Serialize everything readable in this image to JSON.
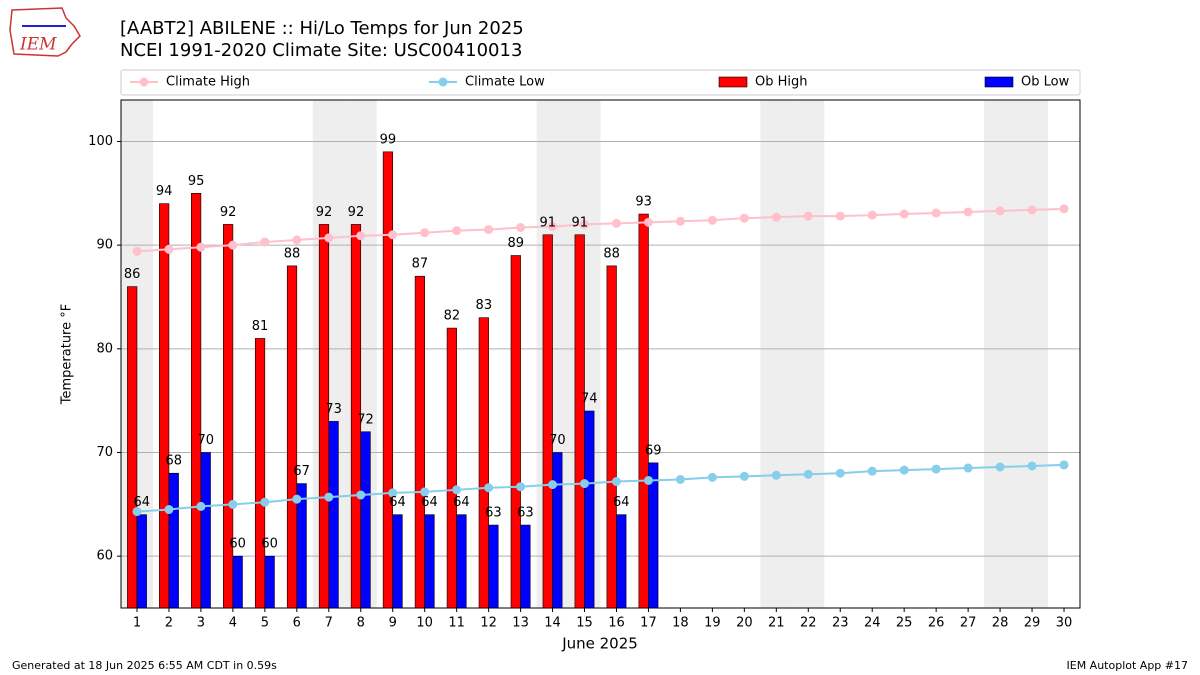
{
  "chart_data": {
    "type": "bar_line",
    "title": "[AABT2] ABILENE :: Hi/Lo Temps for Jun 2025",
    "subtitle": "NCEI 1991-2020 Climate Site: USC00410013",
    "logo_text": "IEM",
    "x_label": "June 2025",
    "y_label": "Temperature °F",
    "footer_left": "Generated at 18 Jun 2025 6:55 AM CDT in 0.59s",
    "footer_right": "IEM Autoplot App #17",
    "x": [
      1,
      2,
      3,
      4,
      5,
      6,
      7,
      8,
      9,
      10,
      11,
      12,
      13,
      14,
      15,
      16,
      17,
      18,
      19,
      20,
      21,
      22,
      23,
      24,
      25,
      26,
      27,
      28,
      29,
      30
    ],
    "xlim": [
      0.5,
      30.5
    ],
    "xticks": [
      1,
      2,
      3,
      4,
      5,
      6,
      7,
      8,
      9,
      10,
      11,
      12,
      13,
      14,
      15,
      16,
      17,
      18,
      19,
      20,
      21,
      22,
      23,
      24,
      25,
      26,
      27,
      28,
      29,
      30
    ],
    "ylim": [
      55,
      104
    ],
    "yticks": [
      60,
      70,
      80,
      90,
      100
    ],
    "grid": true,
    "shaded_days": [
      1,
      7,
      8,
      14,
      15,
      21,
      22,
      28,
      29
    ],
    "shade_color": "#eeeeee",
    "series": [
      {
        "name": "Climate High",
        "kind": "line",
        "color": "pink",
        "values": [
          89.4,
          89.6,
          89.8,
          90.0,
          90.3,
          90.5,
          90.7,
          90.9,
          91.0,
          91.2,
          91.4,
          91.5,
          91.7,
          91.8,
          92.0,
          92.1,
          92.2,
          92.3,
          92.4,
          92.6,
          92.7,
          92.8,
          92.8,
          92.9,
          93.0,
          93.1,
          93.2,
          93.3,
          93.4,
          93.5
        ]
      },
      {
        "name": "Climate Low",
        "kind": "line",
        "color": "skyblue",
        "values": [
          64.3,
          64.5,
          64.8,
          65.0,
          65.2,
          65.5,
          65.7,
          65.9,
          66.1,
          66.2,
          66.4,
          66.6,
          66.7,
          66.9,
          67.0,
          67.2,
          67.3,
          67.4,
          67.6,
          67.7,
          67.8,
          67.9,
          68.0,
          68.2,
          68.3,
          68.4,
          68.5,
          68.6,
          68.7,
          68.8
        ]
      },
      {
        "name": "Ob High",
        "kind": "bar",
        "color": "#ff0000",
        "values": [
          86,
          94,
          95,
          92,
          81,
          88,
          92,
          92,
          99,
          87,
          82,
          83,
          89,
          91,
          91,
          88,
          93,
          null,
          null,
          null,
          null,
          null,
          null,
          null,
          null,
          null,
          null,
          null,
          null,
          null
        ]
      },
      {
        "name": "Ob Low",
        "kind": "bar",
        "color": "#0000ff",
        "values": [
          64,
          68,
          70,
          60,
          60,
          67,
          73,
          72,
          64,
          64,
          64,
          63,
          63,
          70,
          74,
          64,
          69,
          null,
          null,
          null,
          null,
          null,
          null,
          null,
          null,
          null,
          null,
          null,
          null,
          null
        ]
      }
    ]
  }
}
